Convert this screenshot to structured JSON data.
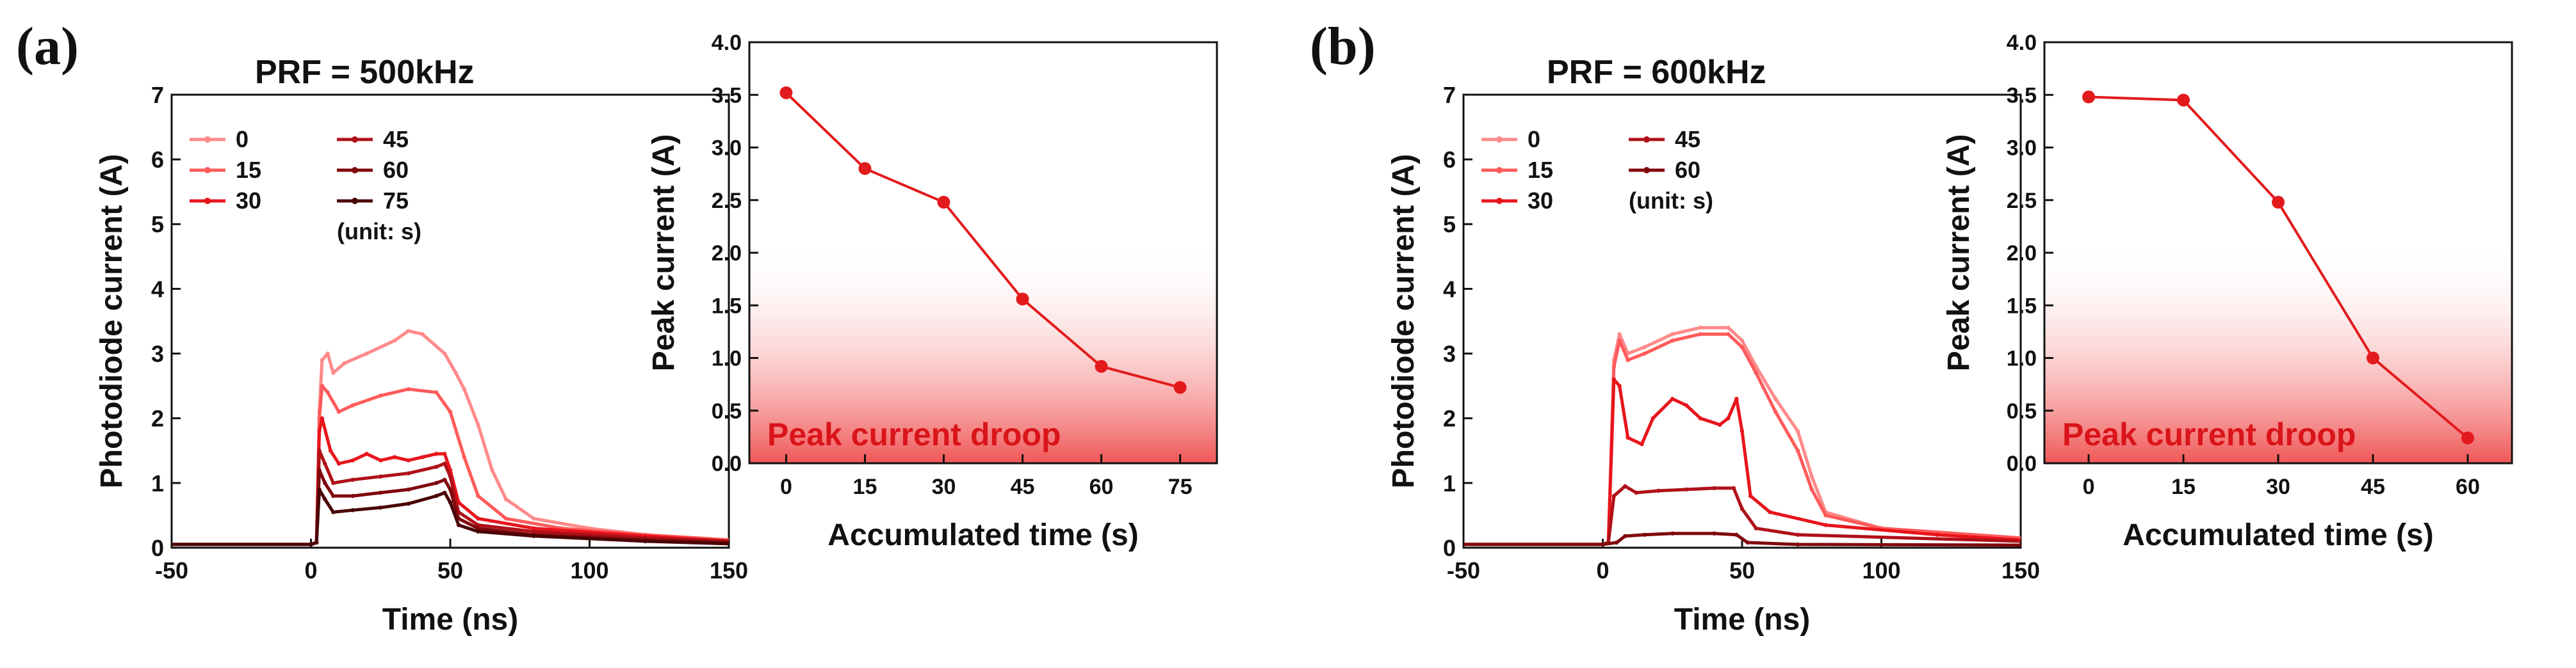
{
  "figure": {
    "panel_a_label": "(a)",
    "panel_b_label": "(b)",
    "inset_fill_top": "#ffffff",
    "inset_fill_bottom": "#ef4444",
    "droop_color": "#e31a1c",
    "curve_colors": [
      "#ff8a8a",
      "#ff5a5a",
      "#e8141c",
      "#b01018",
      "#80080c",
      "#4a0406"
    ]
  },
  "chart_data": [
    {
      "id": "a_waveform",
      "type": "line",
      "title": "PRF = 500kHz",
      "xlabel": "Time (ns)",
      "ylabel": "Photodiode current (A)",
      "xlim": [
        -50,
        150
      ],
      "ylim": [
        0,
        7
      ],
      "xticks": [
        -50,
        0,
        50,
        100,
        150
      ],
      "yticks": [
        0,
        1,
        2,
        3,
        4,
        5,
        6,
        7
      ],
      "legend_note": "(unit: s)",
      "legend_location": "top-left",
      "series": [
        {
          "name": "0",
          "points": [
            [
              -50,
              0.05
            ],
            [
              0,
              0.05
            ],
            [
              2,
              0.08
            ],
            [
              3,
              2.1
            ],
            [
              4,
              2.9
            ],
            [
              6,
              3.0
            ],
            [
              8,
              2.7
            ],
            [
              12,
              2.85
            ],
            [
              20,
              3.0
            ],
            [
              30,
              3.2
            ],
            [
              35,
              3.35
            ],
            [
              40,
              3.3
            ],
            [
              48,
              3.0
            ],
            [
              52,
              2.7
            ],
            [
              55,
              2.45
            ],
            [
              60,
              1.9
            ],
            [
              65,
              1.2
            ],
            [
              70,
              0.75
            ],
            [
              80,
              0.45
            ],
            [
              100,
              0.3
            ],
            [
              120,
              0.2
            ],
            [
              150,
              0.12
            ]
          ]
        },
        {
          "name": "15",
          "points": [
            [
              -50,
              0.05
            ],
            [
              0,
              0.05
            ],
            [
              2,
              0.08
            ],
            [
              3,
              2.0
            ],
            [
              4,
              2.5
            ],
            [
              6,
              2.4
            ],
            [
              10,
              2.1
            ],
            [
              15,
              2.2
            ],
            [
              25,
              2.35
            ],
            [
              35,
              2.45
            ],
            [
              45,
              2.4
            ],
            [
              50,
              2.1
            ],
            [
              55,
              1.4
            ],
            [
              60,
              0.8
            ],
            [
              70,
              0.45
            ],
            [
              90,
              0.3
            ],
            [
              120,
              0.2
            ],
            [
              150,
              0.12
            ]
          ]
        },
        {
          "name": "30",
          "points": [
            [
              -50,
              0.05
            ],
            [
              0,
              0.05
            ],
            [
              2,
              0.08
            ],
            [
              3,
              1.8
            ],
            [
              4,
              2.0
            ],
            [
              7,
              1.5
            ],
            [
              10,
              1.3
            ],
            [
              15,
              1.35
            ],
            [
              20,
              1.45
            ],
            [
              25,
              1.35
            ],
            [
              30,
              1.4
            ],
            [
              35,
              1.35
            ],
            [
              40,
              1.4
            ],
            [
              45,
              1.45
            ],
            [
              48,
              1.45
            ],
            [
              50,
              1.2
            ],
            [
              53,
              0.7
            ],
            [
              60,
              0.45
            ],
            [
              80,
              0.3
            ],
            [
              120,
              0.18
            ],
            [
              150,
              0.1
            ]
          ]
        },
        {
          "name": "45",
          "points": [
            [
              -50,
              0.05
            ],
            [
              0,
              0.05
            ],
            [
              2,
              0.08
            ],
            [
              3,
              1.5
            ],
            [
              5,
              1.3
            ],
            [
              8,
              1.0
            ],
            [
              15,
              1.05
            ],
            [
              25,
              1.1
            ],
            [
              35,
              1.15
            ],
            [
              45,
              1.25
            ],
            [
              48,
              1.3
            ],
            [
              50,
              1.1
            ],
            [
              53,
              0.55
            ],
            [
              60,
              0.35
            ],
            [
              80,
              0.25
            ],
            [
              120,
              0.15
            ],
            [
              150,
              0.1
            ]
          ]
        },
        {
          "name": "60",
          "points": [
            [
              -50,
              0.05
            ],
            [
              0,
              0.05
            ],
            [
              2,
              0.08
            ],
            [
              3,
              1.2
            ],
            [
              5,
              1.0
            ],
            [
              8,
              0.8
            ],
            [
              15,
              0.8
            ],
            [
              25,
              0.85
            ],
            [
              35,
              0.9
            ],
            [
              45,
              1.0
            ],
            [
              48,
              1.05
            ],
            [
              50,
              0.9
            ],
            [
              53,
              0.45
            ],
            [
              60,
              0.3
            ],
            [
              80,
              0.2
            ],
            [
              120,
              0.12
            ],
            [
              150,
              0.08
            ]
          ]
        },
        {
          "name": "75",
          "points": [
            [
              -50,
              0.05
            ],
            [
              0,
              0.05
            ],
            [
              2,
              0.08
            ],
            [
              3,
              0.9
            ],
            [
              5,
              0.75
            ],
            [
              8,
              0.55
            ],
            [
              15,
              0.58
            ],
            [
              25,
              0.62
            ],
            [
              35,
              0.68
            ],
            [
              45,
              0.8
            ],
            [
              48,
              0.85
            ],
            [
              50,
              0.7
            ],
            [
              53,
              0.35
            ],
            [
              60,
              0.25
            ],
            [
              80,
              0.18
            ],
            [
              120,
              0.1
            ],
            [
              150,
              0.06
            ]
          ]
        }
      ]
    },
    {
      "id": "a_peak",
      "type": "line",
      "xlabel": "Accumulated time (s)",
      "ylabel": "Peak current (A)",
      "xlim": [
        -7,
        82
      ],
      "ylim": [
        0,
        4
      ],
      "xticks": [
        0,
        15,
        30,
        45,
        60,
        75
      ],
      "yticks": [
        0.0,
        0.5,
        1.0,
        1.5,
        2.0,
        2.5,
        3.0,
        3.5,
        4.0
      ],
      "annotation": "Peak current droop",
      "x": [
        0,
        15,
        30,
        45,
        60,
        75
      ],
      "values": [
        3.52,
        2.8,
        2.48,
        1.56,
        0.92,
        0.72
      ]
    },
    {
      "id": "b_waveform",
      "type": "line",
      "title": "PRF = 600kHz",
      "xlabel": "Time (ns)",
      "ylabel": "Photodiode current (A)",
      "xlim": [
        -50,
        150
      ],
      "ylim": [
        0,
        7
      ],
      "xticks": [
        -50,
        0,
        50,
        100,
        150
      ],
      "yticks": [
        0,
        1,
        2,
        3,
        4,
        5,
        6,
        7
      ],
      "legend_note": "(unit: s)",
      "legend_location": "top-left",
      "series": [
        {
          "name": "0",
          "points": [
            [
              -50,
              0.05
            ],
            [
              0,
              0.05
            ],
            [
              2,
              0.08
            ],
            [
              4,
              2.9
            ],
            [
              6,
              3.3
            ],
            [
              9,
              3.0
            ],
            [
              15,
              3.1
            ],
            [
              25,
              3.3
            ],
            [
              35,
              3.4
            ],
            [
              45,
              3.4
            ],
            [
              50,
              3.2
            ],
            [
              55,
              2.8
            ],
            [
              62,
              2.3
            ],
            [
              70,
              1.8
            ],
            [
              75,
              1.1
            ],
            [
              80,
              0.55
            ],
            [
              100,
              0.3
            ],
            [
              150,
              0.15
            ]
          ]
        },
        {
          "name": "15",
          "points": [
            [
              -50,
              0.05
            ],
            [
              0,
              0.05
            ],
            [
              2,
              0.08
            ],
            [
              4,
              2.8
            ],
            [
              6,
              3.2
            ],
            [
              9,
              2.9
            ],
            [
              15,
              3.0
            ],
            [
              25,
              3.2
            ],
            [
              35,
              3.3
            ],
            [
              45,
              3.3
            ],
            [
              50,
              3.1
            ],
            [
              55,
              2.7
            ],
            [
              62,
              2.1
            ],
            [
              70,
              1.5
            ],
            [
              75,
              0.9
            ],
            [
              80,
              0.5
            ],
            [
              100,
              0.3
            ],
            [
              150,
              0.15
            ]
          ]
        },
        {
          "name": "30",
          "points": [
            [
              -50,
              0.05
            ],
            [
              0,
              0.05
            ],
            [
              2,
              0.08
            ],
            [
              4,
              2.6
            ],
            [
              6,
              2.5
            ],
            [
              9,
              1.7
            ],
            [
              14,
              1.6
            ],
            [
              18,
              2.0
            ],
            [
              25,
              2.3
            ],
            [
              30,
              2.2
            ],
            [
              35,
              2.0
            ],
            [
              42,
              1.9
            ],
            [
              45,
              2.0
            ],
            [
              48,
              2.3
            ],
            [
              50,
              1.8
            ],
            [
              53,
              0.8
            ],
            [
              60,
              0.55
            ],
            [
              80,
              0.35
            ],
            [
              120,
              0.2
            ],
            [
              150,
              0.12
            ]
          ]
        },
        {
          "name": "45",
          "points": [
            [
              -50,
              0.05
            ],
            [
              0,
              0.05
            ],
            [
              2,
              0.08
            ],
            [
              4,
              0.8
            ],
            [
              8,
              0.95
            ],
            [
              12,
              0.85
            ],
            [
              20,
              0.88
            ],
            [
              30,
              0.9
            ],
            [
              40,
              0.92
            ],
            [
              47,
              0.92
            ],
            [
              50,
              0.6
            ],
            [
              55,
              0.3
            ],
            [
              70,
              0.2
            ],
            [
              150,
              0.1
            ]
          ]
        },
        {
          "name": "60",
          "points": [
            [
              -50,
              0.05
            ],
            [
              0,
              0.05
            ],
            [
              5,
              0.08
            ],
            [
              8,
              0.18
            ],
            [
              15,
              0.2
            ],
            [
              25,
              0.22
            ],
            [
              40,
              0.22
            ],
            [
              48,
              0.2
            ],
            [
              52,
              0.08
            ],
            [
              70,
              0.05
            ],
            [
              150,
              0.04
            ]
          ]
        }
      ]
    },
    {
      "id": "b_peak",
      "type": "line",
      "xlabel": "Accumulated time (s)",
      "ylabel": "Peak current (A)",
      "xlim": [
        -7,
        67
      ],
      "ylim": [
        0,
        4
      ],
      "xticks": [
        0,
        15,
        30,
        45,
        60
      ],
      "yticks": [
        0.0,
        0.5,
        1.0,
        1.5,
        2.0,
        2.5,
        3.0,
        3.5,
        4.0
      ],
      "annotation": "Peak current droop",
      "x": [
        0,
        15,
        30,
        45,
        60
      ],
      "values": [
        3.48,
        3.45,
        2.48,
        1.0,
        0.24
      ]
    }
  ]
}
